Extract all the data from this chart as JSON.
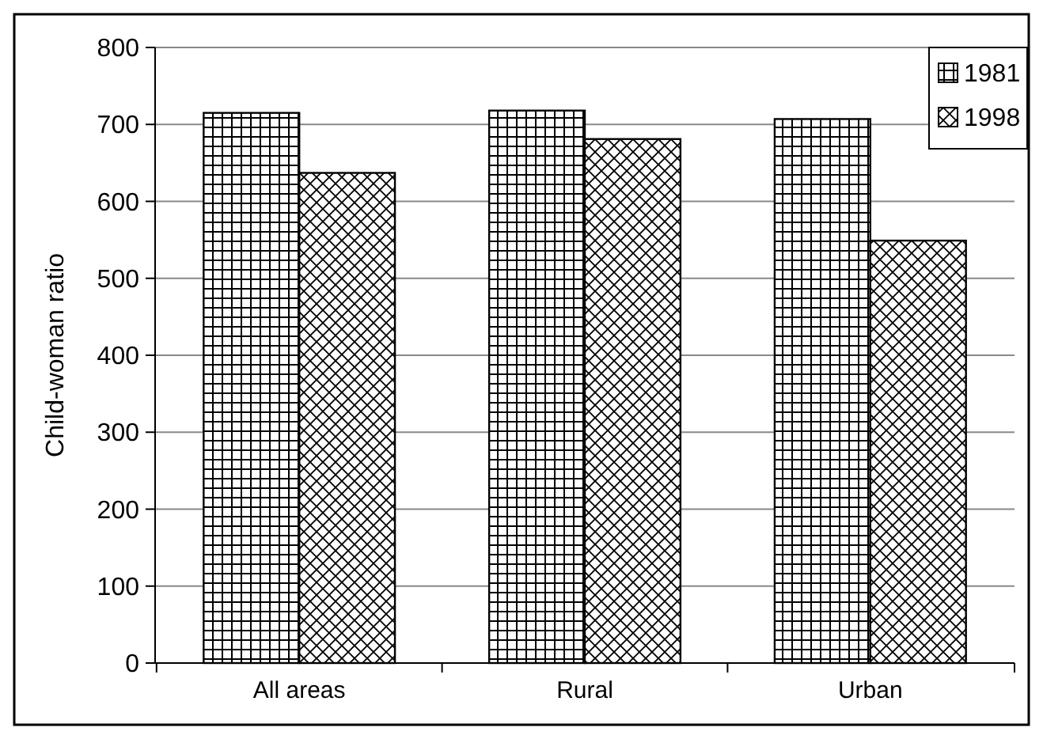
{
  "chart_data": {
    "type": "bar",
    "ylabel": "Child-woman ratio",
    "categories": [
      "All areas",
      "Rural",
      "Urban"
    ],
    "series": [
      {
        "name": "1981",
        "color": "#000000",
        "values": [
          715,
          718,
          707
        ]
      },
      {
        "name": "1998",
        "color": "#000000",
        "values": [
          637,
          681,
          549
        ]
      }
    ],
    "ylim": [
      0,
      800
    ],
    "yticks": [
      0,
      100,
      200,
      300,
      400,
      500,
      600,
      700,
      800
    ],
    "grid": "y",
    "legend": "top right"
  }
}
